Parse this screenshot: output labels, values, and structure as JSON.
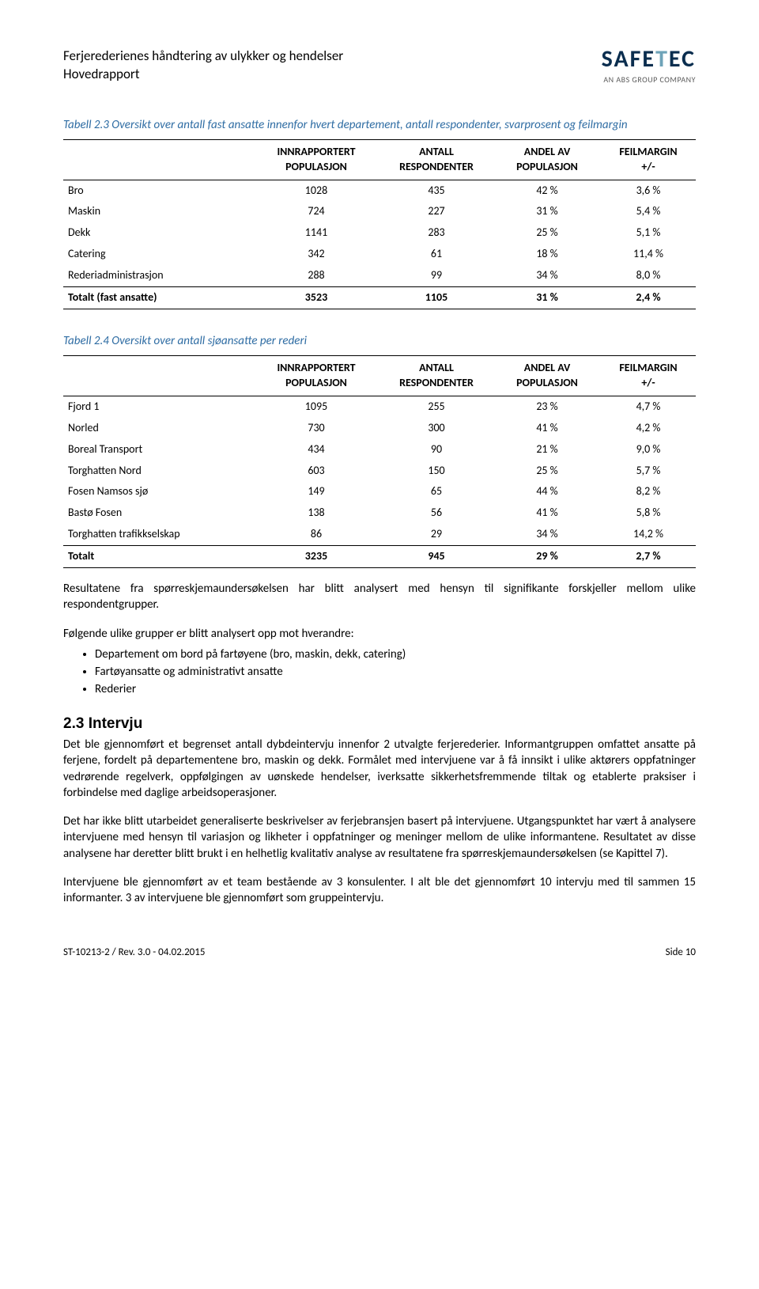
{
  "header": {
    "line1": "Ferjerederienes håndtering av ulykker og hendelser",
    "line2": "Hovedrapport",
    "logo_main_pre": "SAFE",
    "logo_main_accent": "T",
    "logo_main_post": "EC",
    "logo_sub": "AN ABS GROUP COMPANY"
  },
  "table1": {
    "caption": "Tabell 2.3   Oversikt over antall fast ansatte innenfor hvert departement, antall respondenter, svarprosent og feilmargin",
    "columns": {
      "c1": "",
      "c2a": "INNRAPPORTERT",
      "c2b": "POPULASJON",
      "c3a": "ANTALL",
      "c3b": "RESPONDENTER",
      "c4a": "ANDEL AV",
      "c4b": "POPULASJON",
      "c5a": "FEILMARGIN",
      "c5b": "+/-"
    },
    "rows": [
      {
        "label": "Bro",
        "pop": "1028",
        "resp": "435",
        "andel": "42 %",
        "feil": "3,6 %"
      },
      {
        "label": "Maskin",
        "pop": "724",
        "resp": "227",
        "andel": "31 %",
        "feil": "5,4 %"
      },
      {
        "label": "Dekk",
        "pop": "1141",
        "resp": "283",
        "andel": "25 %",
        "feil": "5,1 %"
      },
      {
        "label": "Catering",
        "pop": "342",
        "resp": "61",
        "andel": "18 %",
        "feil": "11,4 %"
      },
      {
        "label": "Rederiadministrasjon",
        "pop": "288",
        "resp": "99",
        "andel": "34 %",
        "feil": "8,0 %"
      }
    ],
    "total": {
      "label": "Totalt (fast ansatte)",
      "pop": "3523",
      "resp": "1105",
      "andel": "31 %",
      "feil": "2,4 %"
    }
  },
  "table2": {
    "caption": "Tabell 2.4   Oversikt over antall sjøansatte per rederi",
    "columns": {
      "c1": "",
      "c2a": "INNRAPPORTERT",
      "c2b": "POPULASJON",
      "c3a": "ANTALL",
      "c3b": "RESPONDENTER",
      "c4a": "ANDEL AV",
      "c4b": "POPULASJON",
      "c5a": "FEILMARGIN",
      "c5b": "+/-"
    },
    "rows": [
      {
        "label": "Fjord 1",
        "pop": "1095",
        "resp": "255",
        "andel": "23 %",
        "feil": "4,7 %"
      },
      {
        "label": "Norled",
        "pop": "730",
        "resp": "300",
        "andel": "41 %",
        "feil": "4,2 %"
      },
      {
        "label": "Boreal Transport",
        "pop": "434",
        "resp": "90",
        "andel": "21 %",
        "feil": "9,0 %"
      },
      {
        "label": "Torghatten Nord",
        "pop": "603",
        "resp": "150",
        "andel": "25 %",
        "feil": "5,7 %"
      },
      {
        "label": "Fosen Namsos sjø",
        "pop": "149",
        "resp": "65",
        "andel": "44 %",
        "feil": "8,2 %"
      },
      {
        "label": "Bastø Fosen",
        "pop": "138",
        "resp": "56",
        "andel": "41 %",
        "feil": "5,8 %"
      },
      {
        "label": "Torghatten trafikkselskap",
        "pop": "86",
        "resp": "29",
        "andel": "34 %",
        "feil": "14,2 %"
      }
    ],
    "total": {
      "label": "Totalt",
      "pop": "3235",
      "resp": "945",
      "andel": "29 %",
      "feil": "2,7 %"
    }
  },
  "body": {
    "p1": "Resultatene fra spørreskjemaundersøkelsen har blitt analysert med hensyn til signifikante forskjeller mellom ulike respondentgrupper.",
    "p2": "Følgende ulike grupper er blitt analysert opp mot hverandre:",
    "bullets": [
      "Departement om bord på fartøyene (bro, maskin, dekk, catering)",
      "Fartøyansatte og administrativt ansatte",
      "Rederier"
    ],
    "h2": "2.3 Intervju",
    "p3": "Det ble gjennomført et begrenset antall dybdeintervju innenfor 2 utvalgte ferjerederier. Informantgruppen omfattet ansatte på ferjene, fordelt på departementene bro, maskin og dekk. Formålet med intervjuene var å få innsikt i ulike aktørers oppfatninger vedrørende regelverk, oppfølgingen av uønskede hendelser, iverksatte sikkerhetsfremmende tiltak og etablerte praksiser i forbindelse med daglige arbeidsoperasjoner.",
    "p4": "Det har ikke blitt utarbeidet generaliserte beskrivelser av ferjebransjen basert på intervjuene. Utgangspunktet har vært å analysere intervjuene med hensyn til variasjon og likheter i oppfatninger og meninger mellom de ulike informantene. Resultatet av disse analysene har deretter blitt brukt i en helhetlig kvalitativ analyse av resultatene fra spørreskjemaundersøkelsen (se Kapittel 7).",
    "p5": "Intervjuene ble gjennomført av et team bestående av 3 konsulenter. I alt ble det gjennomført 10 intervju med til sammen 15 informanter. 3 av intervjuene ble gjennomført som gruppeintervju."
  },
  "footer": {
    "left": "ST-10213-2 / Rev. 3.0 - 04.02.2015",
    "right": "Side 10"
  },
  "styling": {
    "caption_color": "#2e6ca3",
    "logo_color": "#0b2e4f",
    "logo_accent_color": "#6ea3b8",
    "body_width": 960,
    "col_widths_pct": [
      30,
      20,
      18,
      17,
      15
    ]
  }
}
